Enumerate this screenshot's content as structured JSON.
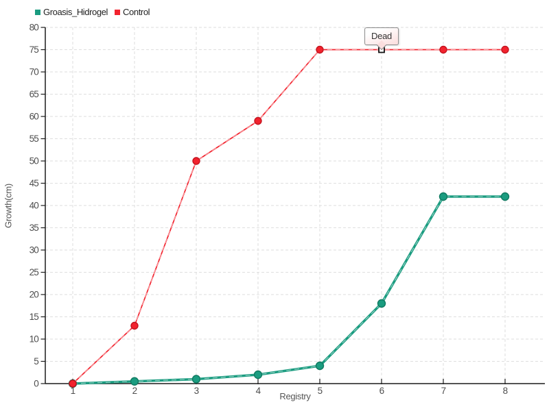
{
  "chart_data": {
    "type": "line",
    "x": [
      1,
      2,
      3,
      4,
      5,
      6,
      7,
      8
    ],
    "x_ticks": [
      "1",
      "2",
      "3",
      "4",
      "5",
      "6",
      "7",
      "8"
    ],
    "y_ticks": [
      0,
      5,
      10,
      15,
      20,
      25,
      30,
      35,
      40,
      45,
      50,
      55,
      60,
      65,
      70,
      75,
      80
    ],
    "series": [
      {
        "name": "Groasis_Hidrogel",
        "color": "#1b9c80",
        "marker_stroke": "#107a61",
        "line_width": 3.6,
        "marker_radius": 5.5,
        "values": [
          0,
          0.5,
          1,
          2,
          4,
          18,
          42,
          42
        ]
      },
      {
        "name": "Control",
        "color": "#f2232e",
        "marker_stroke": "#c4141f",
        "line_width": 1.7,
        "marker_radius": 5,
        "values": [
          0,
          13,
          50,
          59,
          75,
          75,
          75,
          75
        ]
      }
    ],
    "title": "",
    "xlabel": "Registry",
    "ylabel": "Growth(cm)",
    "ylim": [
      0,
      80
    ],
    "grid": true,
    "gridline_color": "#dedede",
    "axis_color": "#1a1a1a",
    "legend_position": "top-left",
    "annotation": {
      "text": "Dead",
      "series": "Control",
      "x": 6,
      "y": 75,
      "marker": "white-square-black-border"
    }
  }
}
